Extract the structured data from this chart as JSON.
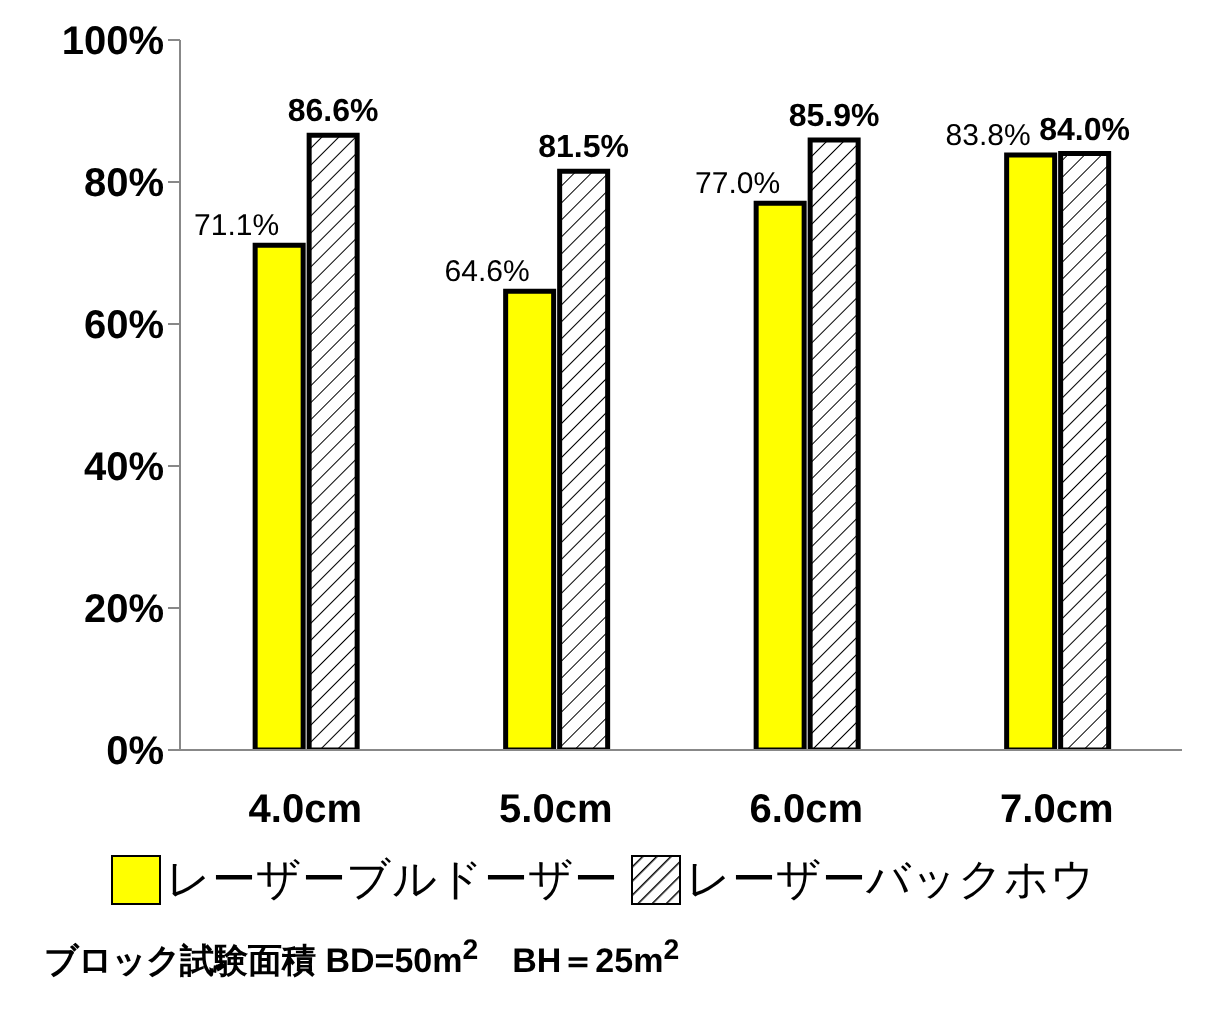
{
  "chart_data": {
    "type": "bar",
    "categories": [
      "4.0cm",
      "5.0cm",
      "6.0cm",
      "7.0cm"
    ],
    "series": [
      {
        "name": "レーザーブルドーザー",
        "color": "#ffff00",
        "values": [
          71.1,
          64.6,
          77.0,
          83.8
        ],
        "value_labels": [
          "71.1%",
          "64.6%",
          "77.0%",
          "83.8%"
        ]
      },
      {
        "name": "レーザーバックホウ",
        "color": "#000000",
        "values": [
          86.6,
          81.5,
          85.9,
          84.0
        ],
        "value_labels": [
          "86.6%",
          "81.5%",
          "85.9%",
          "84.0%"
        ]
      }
    ],
    "ylim": [
      0,
      100
    ],
    "yticks": [
      {
        "value": 0,
        "label": "0%"
      },
      {
        "value": 20,
        "label": "20%"
      },
      {
        "value": 40,
        "label": "40%"
      },
      {
        "value": 60,
        "label": "60%"
      },
      {
        "value": 80,
        "label": "80%"
      },
      {
        "value": 100,
        "label": "100%"
      }
    ],
    "grid": false,
    "legend": "bottom",
    "annotations": [
      "ブロック試験面積 BD=50m$^{2}$　BH＝25m$^{2}$"
    ]
  }
}
